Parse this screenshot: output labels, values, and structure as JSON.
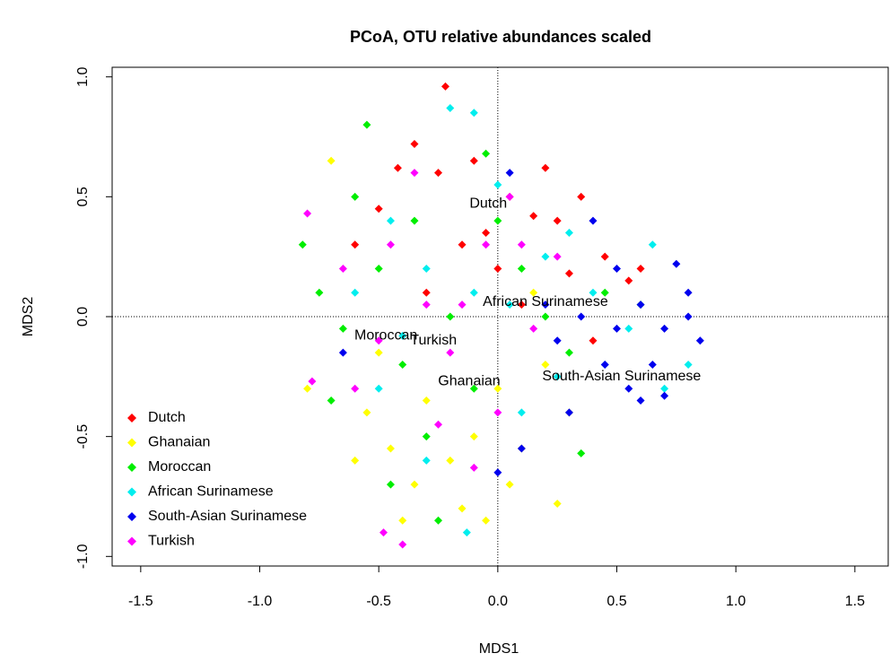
{
  "chart_data": {
    "type": "scatter",
    "title": "PCoA, OTU relative abundances scaled",
    "xlabel": "MDS1",
    "ylabel": "MDS2",
    "xlim": [
      -1.62,
      1.64
    ],
    "ylim": [
      -1.04,
      1.04
    ],
    "xticks": [
      -1.5,
      {
        "value": -1.0,
        "label": "-1.0"
      },
      -0.5,
      {
        "value": 0.0,
        "label": "0.0"
      },
      0.5,
      {
        "value": 1.0,
        "label": "1.0"
      },
      1.5
    ],
    "yticks": [
      {
        "value": -1.0,
        "label": "-1.0"
      },
      -0.5,
      {
        "value": 0.0,
        "label": "0.0"
      },
      0.5,
      {
        "value": 1.0,
        "label": "1.0"
      }
    ],
    "reference_lines": {
      "x": 0,
      "y": 0
    },
    "legend": "bottomleft",
    "series": [
      {
        "name": "Dutch",
        "color": "#ff0000",
        "x": [
          -0.22,
          -0.35,
          -0.42,
          -0.25,
          -0.1,
          0.05,
          0.15,
          0.25,
          0.2,
          0.35,
          -0.5,
          -0.6,
          -0.15,
          0.0,
          0.3,
          0.45,
          0.55,
          0.1,
          -0.3,
          0.4,
          0.6,
          -0.05
        ],
        "values": [
          0.96,
          0.72,
          0.62,
          0.6,
          0.65,
          0.5,
          0.42,
          0.4,
          0.62,
          0.5,
          0.45,
          0.3,
          0.3,
          0.2,
          0.18,
          0.25,
          0.15,
          0.05,
          0.1,
          -0.1,
          0.2,
          0.35
        ]
      },
      {
        "name": "Ghanaian",
        "color": "#ffff00",
        "x": [
          -0.55,
          -0.45,
          -0.35,
          -0.2,
          -0.1,
          0.0,
          0.1,
          0.25,
          -0.6,
          -0.3,
          -0.15,
          0.05,
          -0.4,
          0.2,
          -0.7,
          -0.8,
          0.3,
          -0.05,
          -0.5,
          0.15
        ],
        "values": [
          -0.4,
          -0.55,
          -0.7,
          -0.6,
          -0.5,
          -0.3,
          -0.55,
          -0.78,
          -0.6,
          -0.35,
          -0.8,
          -0.7,
          -0.85,
          -0.2,
          0.65,
          -0.3,
          -0.4,
          -0.85,
          -0.15,
          0.1
        ]
      },
      {
        "name": "Moroccan",
        "color": "#00ee00",
        "x": [
          -0.82,
          -0.75,
          -0.65,
          -0.55,
          -0.6,
          -0.5,
          -0.4,
          -0.35,
          -0.3,
          -0.2,
          -0.1,
          0.0,
          0.1,
          0.3,
          0.45,
          0.6,
          -0.25,
          -0.7,
          -0.45,
          0.35,
          -0.05,
          0.2
        ],
        "values": [
          0.3,
          0.1,
          -0.05,
          0.8,
          0.5,
          0.2,
          -0.2,
          0.4,
          -0.5,
          0.0,
          -0.3,
          0.4,
          0.2,
          -0.15,
          0.1,
          0.05,
          -0.85,
          -0.35,
          -0.7,
          -0.57,
          0.68,
          0.0
        ]
      },
      {
        "name": "African Surinamese",
        "color": "#00eeee",
        "x": [
          -0.1,
          -0.2,
          -0.45,
          -0.3,
          -0.1,
          0.05,
          0.2,
          0.3,
          0.4,
          0.55,
          0.7,
          0.8,
          0.65,
          -0.5,
          -0.3,
          -0.13,
          0.1,
          0.25,
          -0.6,
          0.45,
          0.0,
          -0.4
        ],
        "values": [
          0.85,
          0.87,
          0.4,
          0.2,
          0.1,
          0.05,
          0.25,
          0.35,
          0.1,
          -0.05,
          -0.3,
          -0.2,
          0.3,
          -0.3,
          -0.6,
          -0.9,
          -0.4,
          -0.25,
          0.1,
          -0.2,
          0.55,
          -0.08
        ]
      },
      {
        "name": "South-Asian Surinamese",
        "color": "#0000ee",
        "x": [
          0.5,
          0.6,
          0.7,
          0.75,
          0.8,
          0.85,
          0.65,
          0.55,
          0.45,
          0.35,
          0.25,
          0.3,
          0.1,
          0.0,
          0.4,
          0.7,
          0.6,
          0.2,
          0.5,
          -0.65,
          0.05,
          0.8
        ],
        "values": [
          0.2,
          0.05,
          -0.05,
          0.22,
          0.0,
          -0.1,
          -0.2,
          -0.3,
          -0.2,
          0.0,
          -0.1,
          -0.4,
          -0.55,
          -0.65,
          0.4,
          -0.33,
          -0.35,
          0.05,
          -0.05,
          -0.15,
          0.6,
          0.1
        ]
      },
      {
        "name": "Turkish",
        "color": "#ff00ff",
        "x": [
          -0.8,
          -0.65,
          -0.5,
          -0.4,
          -0.48,
          -0.3,
          -0.2,
          -0.05,
          0.05,
          -0.1,
          -0.35,
          -0.15,
          0.15,
          0.0,
          -0.25,
          -0.6,
          -0.78,
          0.1,
          -0.45,
          0.25
        ],
        "values": [
          0.43,
          0.2,
          -0.1,
          -0.95,
          -0.9,
          0.05,
          -0.15,
          0.3,
          0.5,
          -0.63,
          0.6,
          0.05,
          -0.05,
          -0.4,
          -0.45,
          -0.3,
          -0.27,
          0.3,
          0.3,
          0.25
        ]
      }
    ],
    "annotations": [
      {
        "text": "Dutch",
        "x": -0.04,
        "y": 0.47
      },
      {
        "text": "African Surinamese",
        "x": 0.2,
        "y": 0.06
      },
      {
        "text": "Moroccan",
        "x": -0.47,
        "y": -0.08
      },
      {
        "text": "Turkish",
        "x": -0.27,
        "y": -0.1
      },
      {
        "text": "Ghanaian",
        "x": -0.12,
        "y": -0.27
      },
      {
        "text": "South-Asian Surinamese",
        "x": 0.52,
        "y": -0.25
      }
    ]
  }
}
